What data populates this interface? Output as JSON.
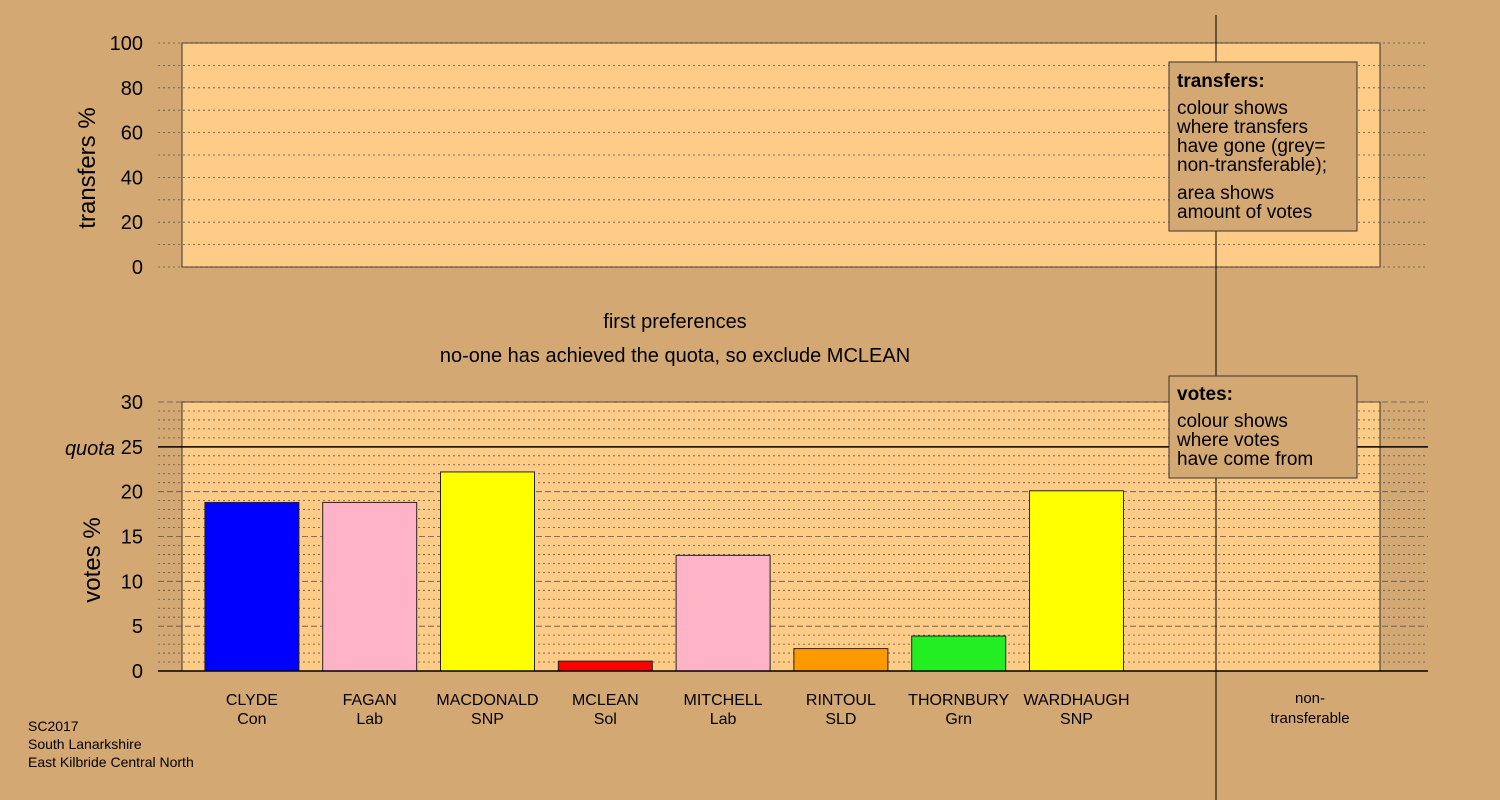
{
  "colors": {
    "background": "#d4a872",
    "plot_area": "#ffcc88",
    "grid": "#555555",
    "Con": "#0000ff",
    "Lab": "#ffb3c6",
    "SNP": "#ffff00",
    "Sol": "#ff0000",
    "SLD": "#ff9900",
    "Grn": "#22ee22"
  },
  "captions": {
    "stage_title": "first preferences",
    "stage_note": "no-one has achieved the quota, so exclude MCLEAN",
    "quota_label": "quota",
    "nontransferable_line1": "non-",
    "nontransferable_line2": "transferable",
    "footer_line1": "SC2017",
    "footer_line2": "South Lanarkshire",
    "footer_line3": "East Kilbride Central North"
  },
  "legends": {
    "transfers": {
      "title": "transfers:",
      "lines": [
        "colour shows",
        "where transfers",
        "have gone (grey=",
        "non-transferable);",
        "area shows",
        "amount of votes"
      ]
    },
    "votes": {
      "title": "votes:",
      "lines": [
        "colour shows",
        "where votes",
        "have come from"
      ]
    }
  },
  "chart_data": [
    {
      "type": "bar",
      "ylabel": "transfers %",
      "ylim": [
        0,
        100
      ],
      "yticks": [
        0,
        20,
        40,
        60,
        80,
        100
      ],
      "grid": true,
      "values": []
    },
    {
      "type": "bar",
      "ylabel": "votes %",
      "ylim": [
        0,
        30
      ],
      "yticks": [
        0,
        5,
        10,
        15,
        20,
        25,
        30
      ],
      "quota": 25,
      "grid": true,
      "categories": [
        "CLYDE",
        "FAGAN",
        "MACDONALD",
        "MCLEAN",
        "MITCHELL",
        "RINTOUL",
        "THORNBURY",
        "WARDHAUGH"
      ],
      "parties": [
        "Con",
        "Lab",
        "SNP",
        "Sol",
        "Lab",
        "SLD",
        "Grn",
        "SNP"
      ],
      "values": [
        18.8,
        18.8,
        22.2,
        1.1,
        12.9,
        2.5,
        3.9,
        20.1
      ]
    }
  ]
}
